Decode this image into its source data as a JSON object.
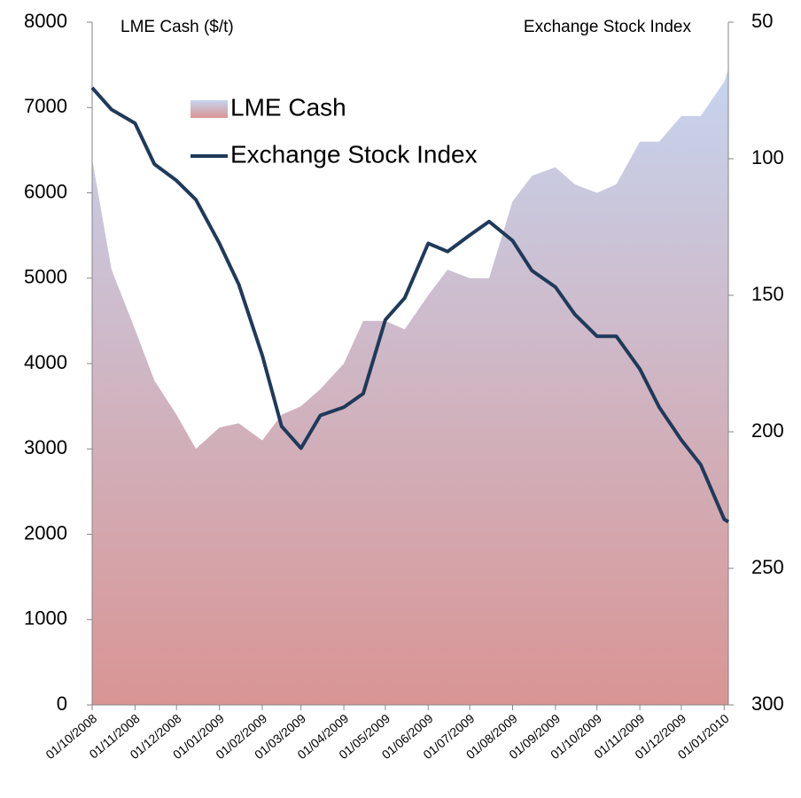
{
  "chart_data": {
    "type": "line",
    "left_axis_title": "LME Cash ($/t)",
    "right_axis_title": "Exchange Stock Index",
    "x": [
      "01/10/2008",
      "15/10/2008",
      "01/11/2008",
      "15/11/2008",
      "01/12/2008",
      "15/12/2008",
      "01/01/2009",
      "15/01/2009",
      "01/02/2009",
      "15/02/2009",
      "01/03/2009",
      "15/03/2009",
      "01/04/2009",
      "15/04/2009",
      "01/05/2009",
      "15/05/2009",
      "01/06/2009",
      "15/06/2009",
      "01/07/2009",
      "15/07/2009",
      "01/08/2009",
      "15/08/2009",
      "01/09/2009",
      "15/09/2009",
      "01/10/2009",
      "15/10/2009",
      "01/11/2009",
      "15/11/2009",
      "01/12/2009",
      "15/12/2009",
      "01/01/2010",
      "04/01/2010"
    ],
    "xlim": [
      "01/10/2008",
      "04/01/2010"
    ],
    "xticks": [
      "01/10/2008",
      "01/11/2008",
      "01/12/2008",
      "01/01/2009",
      "01/02/2009",
      "01/03/2009",
      "01/04/2009",
      "01/05/2009",
      "01/06/2009",
      "01/07/2009",
      "01/08/2009",
      "01/09/2009",
      "01/10/2009",
      "01/11/2009",
      "01/12/2009",
      "01/01/2010"
    ],
    "ylim": [
      0,
      8000
    ],
    "yticks": [
      0,
      1000,
      2000,
      3000,
      4000,
      5000,
      6000,
      7000,
      8000
    ],
    "y2lim": [
      300,
      50
    ],
    "y2ticks": [
      300,
      250,
      200,
      150,
      100,
      50
    ],
    "series": [
      {
        "name": "LME Cash",
        "style": "area",
        "color_top": "#c6d4ef",
        "color_bottom": "#d99594",
        "values": [
          6400,
          5100,
          4400,
          3800,
          3400,
          3000,
          3250,
          3300,
          3100,
          3400,
          3500,
          3700,
          4000,
          4500,
          4500,
          4400,
          4800,
          5100,
          5000,
          5000,
          5900,
          6200,
          6300,
          6100,
          6000,
          6100,
          6600,
          6600,
          6900,
          6900,
          7300,
          7450
        ]
      },
      {
        "name": "Exchange Stock Index",
        "style": "line",
        "axis": "y2",
        "color": "#1f3a5a",
        "values": [
          74,
          82,
          87,
          102,
          108,
          115,
          131,
          146,
          172,
          198,
          206,
          194,
          191,
          186,
          159,
          151,
          131,
          134,
          128,
          123,
          130,
          141,
          147,
          157,
          165,
          165,
          177,
          191,
          203,
          212,
          232,
          233
        ]
      }
    ]
  }
}
